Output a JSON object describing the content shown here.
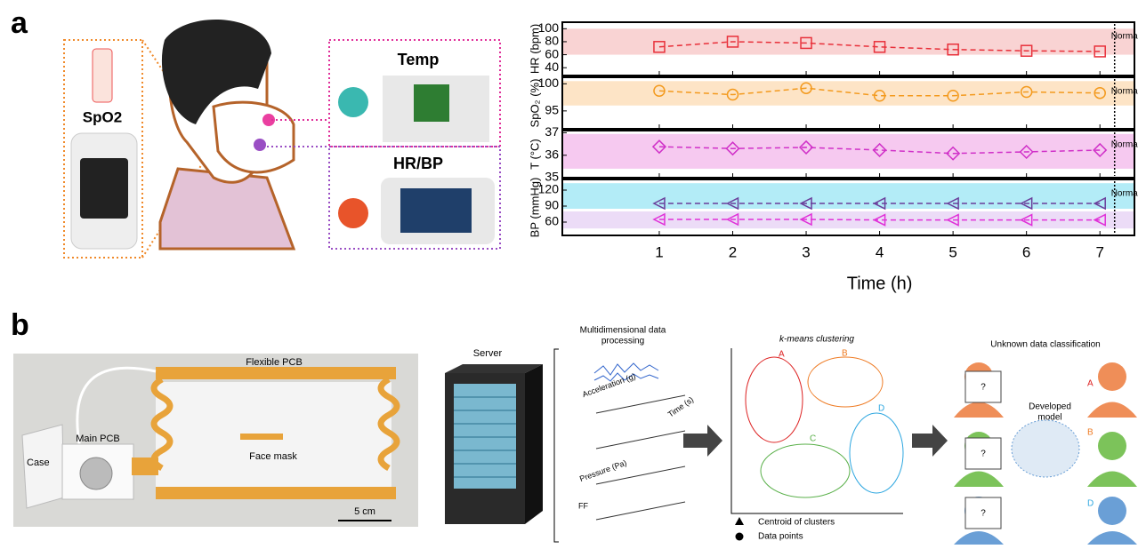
{
  "panel_a": {
    "label": "a",
    "spo2": "SpO2",
    "temp": "Temp",
    "hrbp": "HR/BP"
  },
  "chart_data": [
    {
      "type": "line",
      "ylabel": "HR (bpm)",
      "x": [
        1,
        2,
        3,
        4,
        5,
        6,
        7
      ],
      "xlim": [
        -0.32,
        7.47
      ],
      "xticks": [
        1,
        2,
        3,
        4,
        5,
        6,
        7
      ],
      "xtick_labels": false,
      "ylim": [
        28,
        110
      ],
      "yticks": [
        40,
        60,
        80,
        100
      ],
      "bands": [
        {
          "range": [
            60,
            100
          ],
          "color": "#f9d3d3"
        }
      ],
      "series": [
        {
          "color": "#e8303a",
          "marker": "square",
          "values": [
            72,
            80,
            78,
            72,
            68,
            66,
            65
          ]
        }
      ],
      "annotation": {
        "text": "Normal",
        "x": 7.2
      }
    },
    {
      "type": "line",
      "ylabel": "SpO₂ (%)",
      "x": [
        1,
        2,
        3,
        4,
        5,
        6,
        7
      ],
      "xlim": [
        -0.32,
        7.47
      ],
      "xticks": [
        1,
        2,
        3,
        4,
        5,
        6,
        7
      ],
      "xtick_labels": false,
      "ylim": [
        91.7,
        101.2
      ],
      "yticks": [
        95,
        100
      ],
      "bands": [
        {
          "range": [
            96,
            100.5
          ],
          "color": "#fde4c6"
        }
      ],
      "series": [
        {
          "color": "#f39a1e",
          "marker": "circle",
          "values": [
            98.7,
            98,
            99.2,
            97.8,
            97.8,
            98.5,
            98.3
          ]
        }
      ],
      "annotation": {
        "text": "Normal",
        "x": 7.2
      }
    },
    {
      "type": "line",
      "ylabel": "T (°C)",
      "x": [
        1,
        2,
        3,
        4,
        5,
        6,
        7
      ],
      "xlim": [
        -0.32,
        7.47
      ],
      "xticks": [
        1,
        2,
        3,
        4,
        5,
        6,
        7
      ],
      "xtick_labels": false,
      "ylim": [
        35,
        37.1
      ],
      "yticks": [
        35,
        36,
        37
      ],
      "bands": [
        {
          "range": [
            35.4,
            36.95
          ],
          "color": "#f6c9f0"
        }
      ],
      "series": [
        {
          "color": "#d030c8",
          "marker": "diamond",
          "values": [
            36.38,
            36.3,
            36.35,
            36.23,
            36.08,
            36.15,
            36.23
          ]
        }
      ],
      "annotation": {
        "text": "Normal",
        "x": 7.2
      }
    },
    {
      "type": "line",
      "ylabel": "BP (mmHg)",
      "x": [
        1,
        2,
        3,
        4,
        5,
        6,
        7
      ],
      "xlim": [
        -0.32,
        7.47
      ],
      "xticks": [
        1,
        2,
        3,
        4,
        5,
        6,
        7
      ],
      "xtick_labels": true,
      "xlabel": "Time (h)",
      "ylim": [
        35,
        140
      ],
      "yticks": [
        60,
        90,
        120
      ],
      "bands": [
        {
          "range": [
            85,
            133
          ],
          "color": "#b3ecf7"
        },
        {
          "range": [
            48,
            80
          ],
          "color": "#ecdcf7"
        }
      ],
      "series": [
        {
          "color": "#6a3d9a",
          "marker": "triangle",
          "values": [
            95,
            95,
            95,
            95,
            95,
            95,
            95
          ]
        },
        {
          "color": "#e030d8",
          "marker": "triangle",
          "values": [
            65,
            65,
            65,
            64,
            64,
            64,
            64
          ]
        }
      ],
      "annotation": {
        "text": "Normal",
        "x": 7.2
      }
    }
  ],
  "panel_b": {
    "label": "b",
    "flexible_pcb": "Flexible PCB",
    "main_pcb": "Main PCB",
    "case": "Case",
    "face_mask": "Face mask",
    "scale": "5 cm",
    "server": "Server",
    "processing": [
      "Multidimensional data",
      "processing"
    ],
    "acceleration": "Acceleration (g)",
    "pressure": "Pressure (Pa)",
    "ff": "FF",
    "time_s": "Time (s)",
    "clustering": "k-means clustering",
    "clusters": [
      "A",
      "B",
      "C",
      "D"
    ],
    "centroid": "Centroid of clusters",
    "points": "Data points",
    "classification": "Unknown data classification",
    "model": [
      "Developed",
      "model"
    ],
    "unknown": "?",
    "results": [
      "A",
      "B",
      "D"
    ]
  }
}
